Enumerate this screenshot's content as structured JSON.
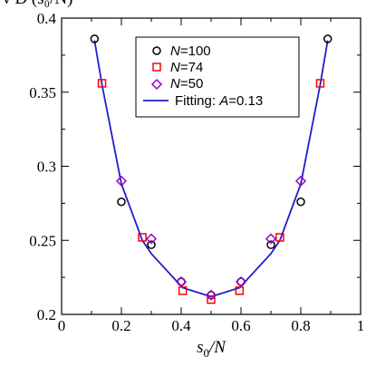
{
  "chart_data": {
    "type": "scatter",
    "ylabel_clipped": "ν  D (s₀/N)",
    "xlabel": {
      "main": "s",
      "sub": "0",
      "rest": "/N"
    },
    "xlim": [
      0,
      1
    ],
    "ylim": [
      0.2,
      0.4
    ],
    "xticks": [
      0,
      0.2,
      0.4,
      0.6,
      0.8,
      1
    ],
    "xtick_labels": [
      "0",
      "0.2",
      "0.4",
      "0.6",
      "0.8",
      "1"
    ],
    "yticks": [
      0.2,
      0.25,
      0.3,
      0.35,
      0.4
    ],
    "ytick_labels": [
      "0.2",
      "0.25",
      "0.3",
      "0.35",
      "0.4"
    ],
    "grid": false,
    "legend_position": "top-center",
    "series": [
      {
        "name": "N=100",
        "legend_label": {
          "ital": "N",
          "rest": "=100"
        },
        "marker": "circle",
        "color": "#000000",
        "x": [
          0.11,
          0.2,
          0.3,
          0.4,
          0.5,
          0.6,
          0.7,
          0.8,
          0.89
        ],
        "y": [
          0.386,
          0.276,
          0.247,
          0.222,
          0.213,
          0.222,
          0.247,
          0.276,
          0.386
        ]
      },
      {
        "name": "N=74",
        "legend_label": {
          "ital": "N",
          "rest": "=74"
        },
        "marker": "square",
        "color": "#ff0000",
        "x": [
          0.135,
          0.27,
          0.405,
          0.5,
          0.595,
          0.73,
          0.865
        ],
        "y": [
          0.356,
          0.252,
          0.216,
          0.21,
          0.216,
          0.252,
          0.356
        ]
      },
      {
        "name": "N=50",
        "legend_label": {
          "ital": "N",
          "rest": "=50"
        },
        "marker": "diamond",
        "color": "#9900cc",
        "x": [
          0.2,
          0.3,
          0.4,
          0.5,
          0.6,
          0.7,
          0.8
        ],
        "y": [
          0.29,
          0.251,
          0.222,
          0.213,
          0.222,
          0.251,
          0.29
        ]
      },
      {
        "name": "Fitting: A=0.13",
        "legend_label": {
          "plain": "Fitting: ",
          "ital": "A",
          "rest": "=0.13"
        },
        "marker": "line",
        "color": "#1f1fcc",
        "x": [
          0.11,
          0.135,
          0.2,
          0.27,
          0.3,
          0.4,
          0.405,
          0.5,
          0.595,
          0.6,
          0.7,
          0.73,
          0.8,
          0.865,
          0.89
        ],
        "y": [
          0.385,
          0.355,
          0.288,
          0.25,
          0.241,
          0.219,
          0.218,
          0.212,
          0.218,
          0.219,
          0.241,
          0.25,
          0.288,
          0.355,
          0.385
        ]
      }
    ]
  }
}
